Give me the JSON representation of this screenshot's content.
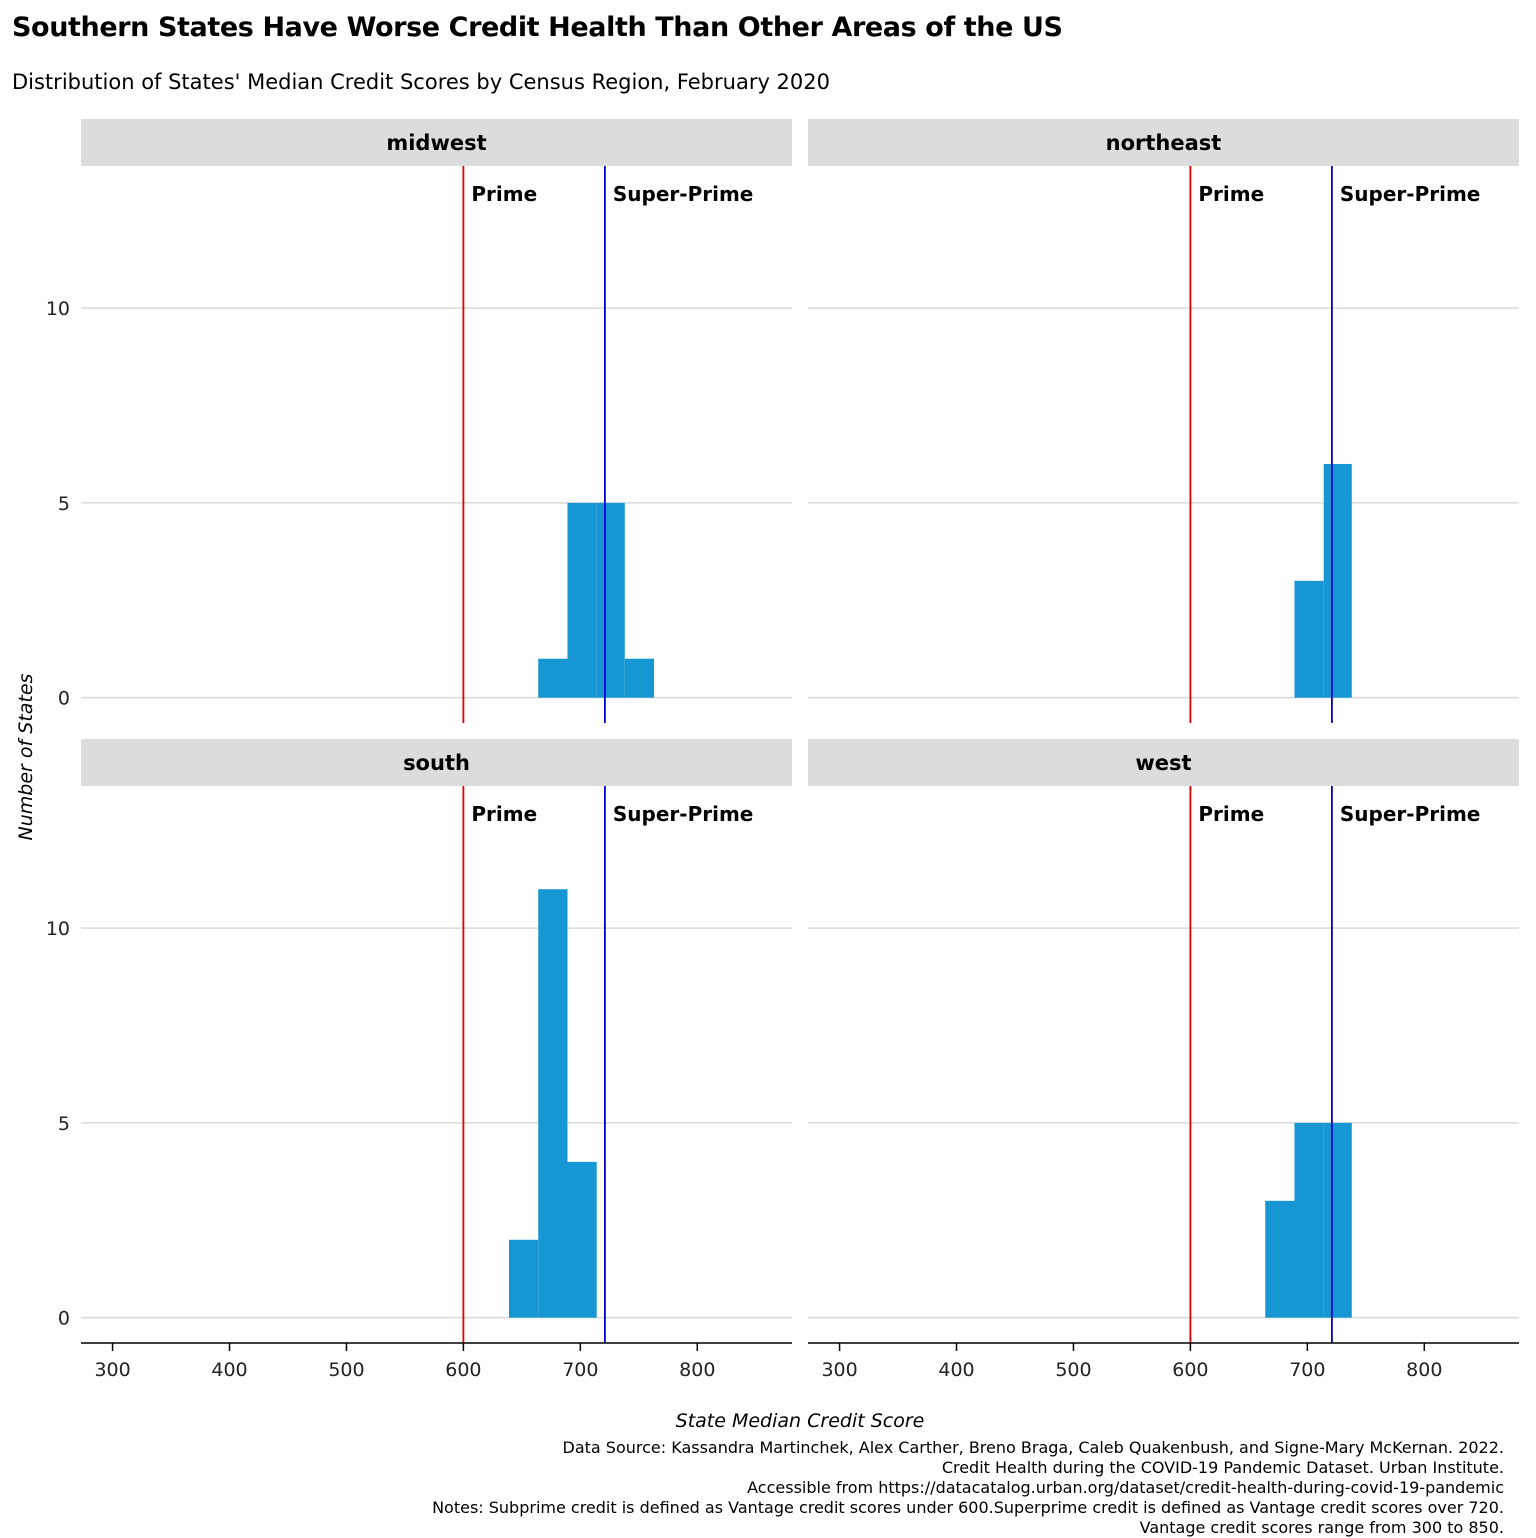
{
  "title": "Southern States Have Worse Credit Health Than Other Areas of the US",
  "subtitle": "Distribution of States' Median Credit Scores by Census Region, February 2020",
  "caption": [
    "Data Source: Kassandra Martinchek, Alex Carther, Breno Braga, Caleb Quakenbush, and Signe-Mary McKernan. 2022.",
    "Credit Health during the COVID-19 Pandemic Dataset. Urban Institute.",
    "Accessible from https://datacatalog.urban.org/dataset/credit-health-during-covid-19-pandemic",
    "Notes: Subprime credit is defined as Vantage credit scores under 600.Superprime credit is defined as Vantage credit scores over 720.",
    "Vantage credit scores range from 300 to 850."
  ],
  "chart_data": {
    "type": "bar",
    "subtype": "faceted histogram",
    "xlabel": "State Median Credit Score",
    "ylabel": "Number of States",
    "xlim": [
      273,
      881
    ],
    "ylim": [
      -0.65,
      13.65
    ],
    "xticks": [
      300,
      400,
      500,
      600,
      700,
      800
    ],
    "yticks": [
      0,
      5,
      10
    ],
    "bin_width": 25,
    "bar_color": "#1696d2",
    "grid": "horizontal",
    "reference_lines": [
      {
        "x": 600,
        "label": "Prime",
        "color": "#e00000"
      },
      {
        "x": 721,
        "label": "Super-Prime",
        "color": "#0000cc"
      }
    ],
    "facets": [
      {
        "name": "midwest",
        "bins": [
          {
            "x0": 664,
            "x1": 689,
            "count": 1
          },
          {
            "x0": 689,
            "x1": 714,
            "count": 5
          },
          {
            "x0": 714,
            "x1": 738,
            "count": 5
          },
          {
            "x0": 738,
            "x1": 763,
            "count": 1
          }
        ]
      },
      {
        "name": "northeast",
        "bins": [
          {
            "x0": 689,
            "x1": 714,
            "count": 3
          },
          {
            "x0": 714,
            "x1": 738,
            "count": 6
          }
        ]
      },
      {
        "name": "south",
        "bins": [
          {
            "x0": 639,
            "x1": 664,
            "count": 2
          },
          {
            "x0": 664,
            "x1": 689,
            "count": 11
          },
          {
            "x0": 689,
            "x1": 714,
            "count": 4
          }
        ]
      },
      {
        "name": "west",
        "bins": [
          {
            "x0": 664,
            "x1": 689,
            "count": 3
          },
          {
            "x0": 689,
            "x1": 714,
            "count": 5
          },
          {
            "x0": 714,
            "x1": 738,
            "count": 5
          }
        ]
      }
    ]
  }
}
